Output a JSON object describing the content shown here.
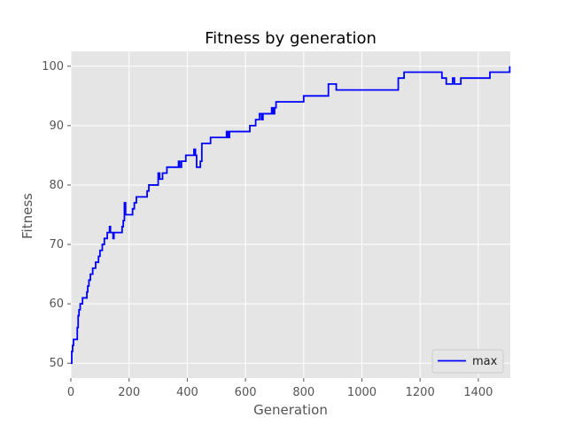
{
  "chart_data": {
    "type": "line",
    "title": "Fitness by generation",
    "xlabel": "Generation",
    "ylabel": "Fitness",
    "xlim": [
      0,
      1510
    ],
    "ylim": [
      47.5,
      102.5
    ],
    "x_ticks": [
      0,
      200,
      400,
      600,
      800,
      1000,
      1200,
      1400
    ],
    "y_ticks": [
      50,
      60,
      70,
      80,
      90,
      100
    ],
    "grid": true,
    "legend_position": "lower-right",
    "series": [
      {
        "name": "max",
        "color": "#0000ff",
        "step_points": [
          [
            0,
            50
          ],
          [
            3,
            52
          ],
          [
            6,
            53
          ],
          [
            9,
            54
          ],
          [
            20,
            54
          ],
          [
            22,
            56
          ],
          [
            25,
            58
          ],
          [
            28,
            59
          ],
          [
            32,
            60
          ],
          [
            40,
            61
          ],
          [
            55,
            62
          ],
          [
            58,
            63
          ],
          [
            62,
            64
          ],
          [
            67,
            65
          ],
          [
            75,
            66
          ],
          [
            85,
            67
          ],
          [
            95,
            68
          ],
          [
            100,
            69
          ],
          [
            108,
            70
          ],
          [
            115,
            71
          ],
          [
            125,
            72
          ],
          [
            133,
            73
          ],
          [
            136,
            72
          ],
          [
            140,
            72
          ],
          [
            145,
            71
          ],
          [
            148,
            72
          ],
          [
            172,
            72
          ],
          [
            176,
            73
          ],
          [
            180,
            74
          ],
          [
            184,
            77
          ],
          [
            188,
            75
          ],
          [
            212,
            76
          ],
          [
            218,
            77
          ],
          [
            225,
            78
          ],
          [
            262,
            79
          ],
          [
            268,
            80
          ],
          [
            300,
            82
          ],
          [
            305,
            81
          ],
          [
            315,
            82
          ],
          [
            330,
            83
          ],
          [
            370,
            84
          ],
          [
            374,
            83
          ],
          [
            380,
            84
          ],
          [
            395,
            85
          ],
          [
            423,
            86
          ],
          [
            428,
            85
          ],
          [
            432,
            83
          ],
          [
            445,
            84
          ],
          [
            450,
            87
          ],
          [
            480,
            88
          ],
          [
            535,
            89
          ],
          [
            540,
            88
          ],
          [
            545,
            89
          ],
          [
            615,
            90
          ],
          [
            635,
            91
          ],
          [
            648,
            92
          ],
          [
            655,
            91
          ],
          [
            660,
            92
          ],
          [
            690,
            93
          ],
          [
            695,
            92
          ],
          [
            700,
            93
          ],
          [
            705,
            94
          ],
          [
            800,
            95
          ],
          [
            885,
            97
          ],
          [
            912,
            96
          ],
          [
            1125,
            98
          ],
          [
            1145,
            99
          ],
          [
            1275,
            98
          ],
          [
            1290,
            97
          ],
          [
            1312,
            98
          ],
          [
            1318,
            97
          ],
          [
            1340,
            98
          ],
          [
            1440,
            99
          ],
          [
            1500,
            99
          ],
          [
            1508,
            100
          ]
        ]
      }
    ]
  }
}
